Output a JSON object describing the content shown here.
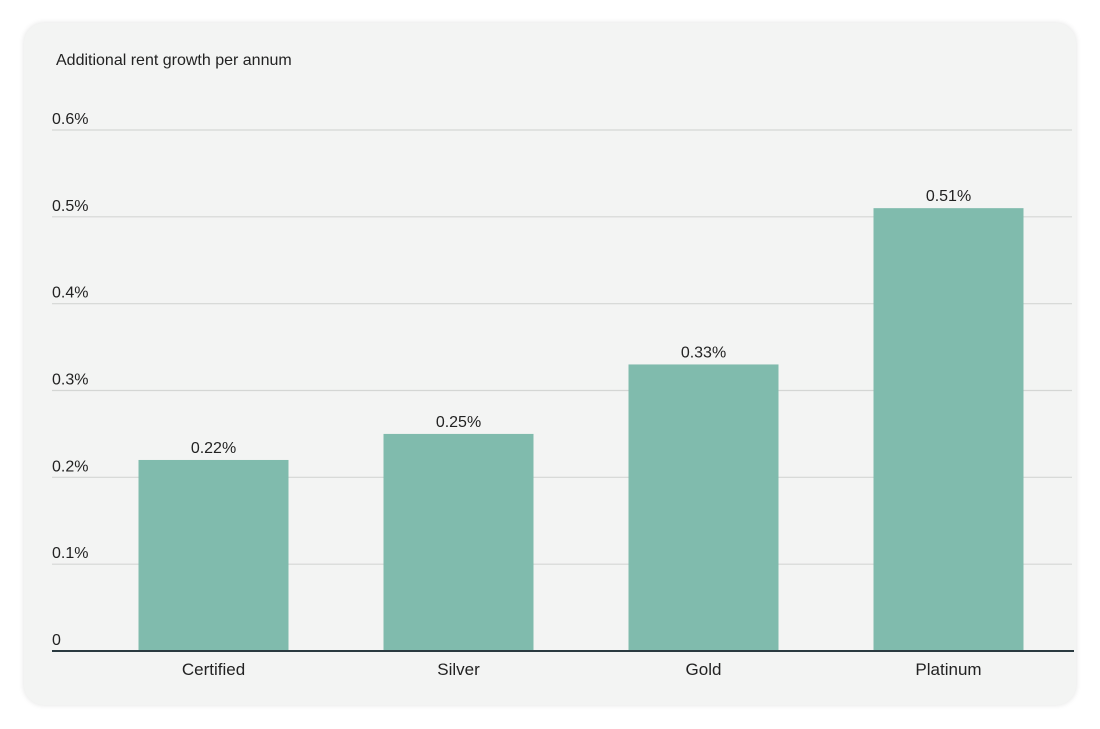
{
  "chart_data": {
    "type": "bar",
    "title": "Additional rent growth per annum",
    "xlabel": "",
    "ylabel": "",
    "categories": [
      "Certified",
      "Silver",
      "Gold",
      "Platinum"
    ],
    "values": [
      0.22,
      0.25,
      0.33,
      0.51
    ],
    "data_labels": [
      "0.22%",
      "0.25%",
      "0.33%",
      "0.51%"
    ],
    "ylim": [
      0,
      0.6
    ],
    "yticks": [
      0,
      0.1,
      0.2,
      0.3,
      0.4,
      0.5,
      0.6
    ],
    "ytick_labels": [
      "0",
      "0.1%",
      "0.2%",
      "0.3%",
      "0.4%",
      "0.5%",
      "0.6%"
    ],
    "grid": true,
    "legend": "none"
  },
  "colors": {
    "bar": "#80bbad",
    "grid": "#d4d6d4",
    "axis": "#2a3a40",
    "text": "#222222",
    "card_background": "#f3f4f3"
  }
}
